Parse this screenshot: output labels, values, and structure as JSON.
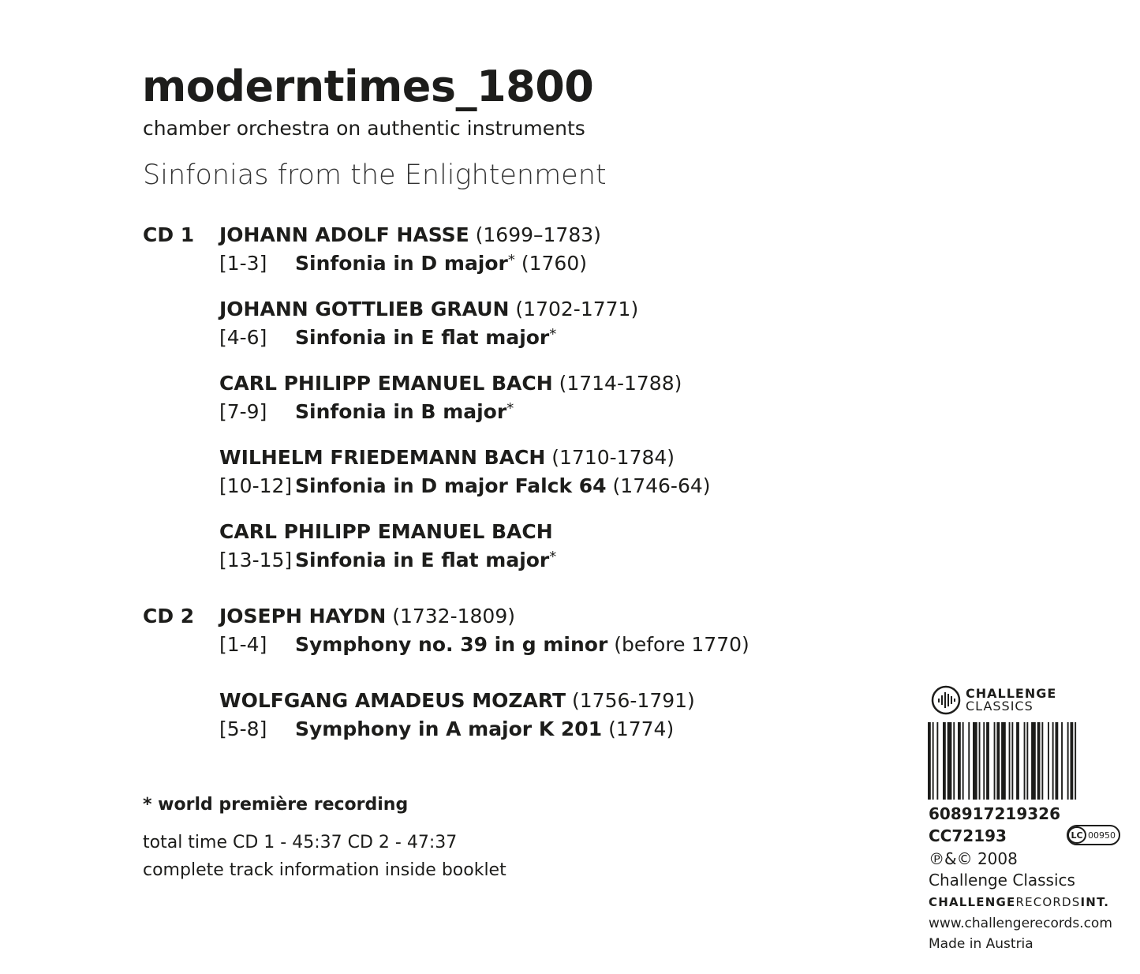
{
  "header": {
    "title": "moderntimes_1800",
    "subtitle": "chamber orchestra on authentic instruments",
    "album": "Sinfonias from the Enlightenment"
  },
  "cds": [
    {
      "label": "CD 1",
      "works": [
        {
          "composer": "JOHANN ADOLF HASSE",
          "dates": "(1699–1783)",
          "tracks": "[1-3]",
          "title": "Sinfonia in D major",
          "mark": "*",
          "extra": "(1760)"
        },
        {
          "composer": "JOHANN GOTTLIEB GRAUN",
          "dates": "(1702-1771)",
          "tracks": "[4-6]",
          "title": "Sinfonia in E flat major",
          "mark": "*",
          "extra": ""
        },
        {
          "composer": "CARL PHILIPP EMANUEL BACH",
          "dates": "(1714-1788)",
          "tracks": "[7-9]",
          "title": "Sinfonia in B major",
          "mark": "*",
          "extra": ""
        },
        {
          "composer": "WILHELM FRIEDEMANN BACH",
          "dates": "(1710-1784)",
          "tracks": "[10-12]",
          "title": "Sinfonia in D major Falck 64",
          "mark": "",
          "extra": "(1746-64)"
        },
        {
          "composer": "CARL PHILIPP EMANUEL BACH",
          "dates": "",
          "tracks": "[13-15]",
          "title": "Sinfonia in E flat major",
          "mark": "*",
          "extra": ""
        }
      ]
    },
    {
      "label": "CD 2",
      "works": [
        {
          "composer": "JOSEPH HAYDN",
          "dates": "(1732-1809)",
          "tracks": "[1-4]",
          "title": "Symphony no. 39 in g minor",
          "mark": "",
          "extra": "(before 1770)"
        },
        {
          "composer": "WOLFGANG AMADEUS MOZART",
          "dates": "(1756-1791)",
          "tracks": "[5-8]",
          "title": "Symphony in A major K 201",
          "mark": "",
          "extra": "(1774)"
        }
      ]
    }
  ],
  "footer": {
    "note": "* world première recording",
    "total": "total time CD 1 - 45:37 CD 2 -  47:37",
    "info": "complete track information inside booklet"
  },
  "label": {
    "logo_line1": "CHALLENGE",
    "logo_line2": "CLASSICS",
    "barcode": "608917219326",
    "catalog": "CC72193",
    "lc": "LC",
    "lc_code": "00950",
    "copyright": "℗&© 2008",
    "company": "Challenge Classics",
    "records_bold": "CHALLENGE",
    "records_light": "RECORDS",
    "records_int": "INT.",
    "website": "www.challengerecords.com",
    "origin": "Made in Austria"
  }
}
